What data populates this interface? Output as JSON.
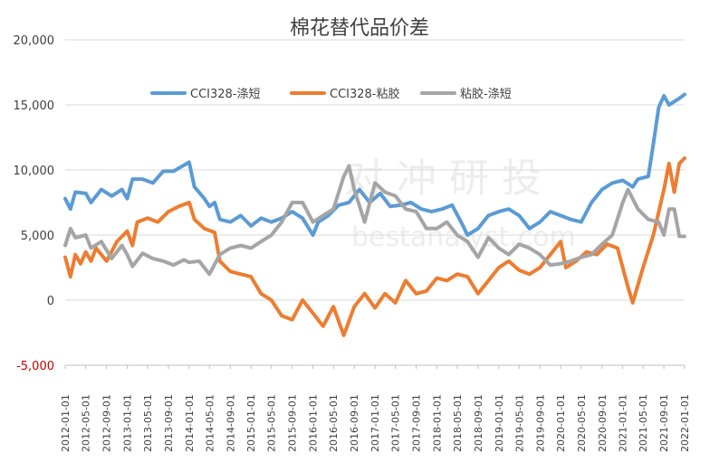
{
  "chart_data": {
    "type": "line",
    "title": "棉花替代品价差",
    "xlabel": "",
    "ylabel": "",
    "ylim": [
      -5000,
      20000
    ],
    "yticks": [
      -5000,
      0,
      5000,
      10000,
      15000,
      20000
    ],
    "ytick_labels": [
      "-5,000",
      "0",
      "5,000",
      "10,000",
      "15,000",
      "20,000"
    ],
    "grid": true,
    "legend_position": "top-center",
    "x_tick_labels": [
      "2012-01-01",
      "2012-05-01",
      "2012-09-01",
      "2013-01-01",
      "2013-05-01",
      "2013-09-01",
      "2014-01-01",
      "2014-05-01",
      "2014-09-01",
      "2015-01-01",
      "2015-05-01",
      "2015-09-01",
      "2016-01-01",
      "2016-05-01",
      "2016-09-01",
      "2017-01-01",
      "2017-05-01",
      "2017-09-01",
      "2018-01-01",
      "2018-05-01",
      "2018-09-01",
      "2019-01-01",
      "2019-05-01",
      "2019-09-01",
      "2020-01-01",
      "2020-05-01",
      "2020-09-01",
      "2021-01-01",
      "2021-05-01",
      "2021-09-01",
      "2022-01-01"
    ],
    "x_start": "2012-01-01",
    "x_end": "2022-01-01",
    "series": [
      {
        "name": "CCI328-涤短",
        "color": "#5b9bd5",
        "points": [
          [
            "2012-01-01",
            7800
          ],
          [
            "2012-02-01",
            7000
          ],
          [
            "2012-03-01",
            8300
          ],
          [
            "2012-05-01",
            8200
          ],
          [
            "2012-06-01",
            7500
          ],
          [
            "2012-08-01",
            8500
          ],
          [
            "2012-10-01",
            8000
          ],
          [
            "2012-12-01",
            8500
          ],
          [
            "2013-01-01",
            7800
          ],
          [
            "2013-02-01",
            9300
          ],
          [
            "2013-04-01",
            9300
          ],
          [
            "2013-06-01",
            9000
          ],
          [
            "2013-08-01",
            9900
          ],
          [
            "2013-10-01",
            9900
          ],
          [
            "2014-01-01",
            10600
          ],
          [
            "2014-02-01",
            8700
          ],
          [
            "2014-04-01",
            7800
          ],
          [
            "2014-05-01",
            7200
          ],
          [
            "2014-06-01",
            7500
          ],
          [
            "2014-07-01",
            6200
          ],
          [
            "2014-09-01",
            6000
          ],
          [
            "2014-11-01",
            6500
          ],
          [
            "2015-01-01",
            5700
          ],
          [
            "2015-03-01",
            6300
          ],
          [
            "2015-05-01",
            6000
          ],
          [
            "2015-07-01",
            6300
          ],
          [
            "2015-09-01",
            6800
          ],
          [
            "2015-11-01",
            6300
          ],
          [
            "2016-01-01",
            5000
          ],
          [
            "2016-02-01",
            6000
          ],
          [
            "2016-04-01",
            6500
          ],
          [
            "2016-06-01",
            7300
          ],
          [
            "2016-08-01",
            7500
          ],
          [
            "2016-10-01",
            8500
          ],
          [
            "2016-12-01",
            7500
          ],
          [
            "2017-02-01",
            8200
          ],
          [
            "2017-04-01",
            7200
          ],
          [
            "2017-06-01",
            7300
          ],
          [
            "2017-08-01",
            7500
          ],
          [
            "2017-10-01",
            7000
          ],
          [
            "2017-12-01",
            6800
          ],
          [
            "2018-02-01",
            7000
          ],
          [
            "2018-04-01",
            7300
          ],
          [
            "2018-06-01",
            5800
          ],
          [
            "2018-07-01",
            5000
          ],
          [
            "2018-09-01",
            5500
          ],
          [
            "2018-11-01",
            6500
          ],
          [
            "2019-01-01",
            6800
          ],
          [
            "2019-03-01",
            7000
          ],
          [
            "2019-05-01",
            6500
          ],
          [
            "2019-07-01",
            5500
          ],
          [
            "2019-09-01",
            6000
          ],
          [
            "2019-11-01",
            6800
          ],
          [
            "2020-01-01",
            6500
          ],
          [
            "2020-03-01",
            6200
          ],
          [
            "2020-05-01",
            6000
          ],
          [
            "2020-07-01",
            7500
          ],
          [
            "2020-09-01",
            8500
          ],
          [
            "2020-11-01",
            9000
          ],
          [
            "2021-01-01",
            9200
          ],
          [
            "2021-03-01",
            8700
          ],
          [
            "2021-04-01",
            9300
          ],
          [
            "2021-06-01",
            9500
          ],
          [
            "2021-07-01",
            12000
          ],
          [
            "2021-08-01",
            14800
          ],
          [
            "2021-09-01",
            15700
          ],
          [
            "2021-10-01",
            15000
          ],
          [
            "2021-12-01",
            15500
          ],
          [
            "2022-01-01",
            15800
          ]
        ]
      },
      {
        "name": "CCI328-粘胶",
        "color": "#ed7d31",
        "points": [
          [
            "2012-01-01",
            3300
          ],
          [
            "2012-02-01",
            1800
          ],
          [
            "2012-03-01",
            3500
          ],
          [
            "2012-04-01",
            2800
          ],
          [
            "2012-05-01",
            3700
          ],
          [
            "2012-06-01",
            3000
          ],
          [
            "2012-07-01",
            4000
          ],
          [
            "2012-09-01",
            3000
          ],
          [
            "2012-11-01",
            4500
          ],
          [
            "2013-01-01",
            5300
          ],
          [
            "2013-02-01",
            4200
          ],
          [
            "2013-03-01",
            6000
          ],
          [
            "2013-05-01",
            6300
          ],
          [
            "2013-07-01",
            6000
          ],
          [
            "2013-09-01",
            6800
          ],
          [
            "2013-11-01",
            7200
          ],
          [
            "2014-01-01",
            7500
          ],
          [
            "2014-02-01",
            6200
          ],
          [
            "2014-04-01",
            5500
          ],
          [
            "2014-06-01",
            5200
          ],
          [
            "2014-07-01",
            3000
          ],
          [
            "2014-09-01",
            2200
          ],
          [
            "2014-11-01",
            2000
          ],
          [
            "2015-01-01",
            1800
          ],
          [
            "2015-03-01",
            500
          ],
          [
            "2015-05-01",
            0
          ],
          [
            "2015-07-01",
            -1200
          ],
          [
            "2015-09-01",
            -1500
          ],
          [
            "2015-11-01",
            0
          ],
          [
            "2016-01-01",
            -1000
          ],
          [
            "2016-03-01",
            -2000
          ],
          [
            "2016-05-01",
            -500
          ],
          [
            "2016-07-01",
            -2700
          ],
          [
            "2016-09-01",
            -500
          ],
          [
            "2016-11-01",
            500
          ],
          [
            "2017-01-01",
            -600
          ],
          [
            "2017-03-01",
            500
          ],
          [
            "2017-05-01",
            -200
          ],
          [
            "2017-07-01",
            1500
          ],
          [
            "2017-09-01",
            500
          ],
          [
            "2017-11-01",
            700
          ],
          [
            "2018-01-01",
            1700
          ],
          [
            "2018-03-01",
            1500
          ],
          [
            "2018-05-01",
            2000
          ],
          [
            "2018-07-01",
            1800
          ],
          [
            "2018-09-01",
            500
          ],
          [
            "2018-11-01",
            1500
          ],
          [
            "2019-01-01",
            2500
          ],
          [
            "2019-03-01",
            3000
          ],
          [
            "2019-05-01",
            2300
          ],
          [
            "2019-07-01",
            2000
          ],
          [
            "2019-09-01",
            2500
          ],
          [
            "2019-11-01",
            3500
          ],
          [
            "2020-01-01",
            4500
          ],
          [
            "2020-02-01",
            2500
          ],
          [
            "2020-04-01",
            3000
          ],
          [
            "2020-06-01",
            3700
          ],
          [
            "2020-08-01",
            3500
          ],
          [
            "2020-10-01",
            4300
          ],
          [
            "2020-12-01",
            4000
          ],
          [
            "2021-02-01",
            1000
          ],
          [
            "2021-03-01",
            -200
          ],
          [
            "2021-05-01",
            2500
          ],
          [
            "2021-07-01",
            5000
          ],
          [
            "2021-09-01",
            8500
          ],
          [
            "2021-10-01",
            10500
          ],
          [
            "2021-11-01",
            8300
          ],
          [
            "2021-12-01",
            10500
          ],
          [
            "2022-01-01",
            10900
          ]
        ]
      },
      {
        "name": "粘胶-涤短",
        "color": "#a5a5a5",
        "points": [
          [
            "2012-01-01",
            4200
          ],
          [
            "2012-02-01",
            5500
          ],
          [
            "2012-03-01",
            4800
          ],
          [
            "2012-05-01",
            5000
          ],
          [
            "2012-06-01",
            4000
          ],
          [
            "2012-08-01",
            4500
          ],
          [
            "2012-10-01",
            3200
          ],
          [
            "2012-12-01",
            4200
          ],
          [
            "2013-01-01",
            3500
          ],
          [
            "2013-02-01",
            2600
          ],
          [
            "2013-04-01",
            3600
          ],
          [
            "2013-06-01",
            3200
          ],
          [
            "2013-08-01",
            3000
          ],
          [
            "2013-10-01",
            2700
          ],
          [
            "2013-12-01",
            3100
          ],
          [
            "2014-01-01",
            2900
          ],
          [
            "2014-03-01",
            3000
          ],
          [
            "2014-05-01",
            2000
          ],
          [
            "2014-07-01",
            3500
          ],
          [
            "2014-09-01",
            4000
          ],
          [
            "2014-11-01",
            4200
          ],
          [
            "2015-01-01",
            4000
          ],
          [
            "2015-03-01",
            4500
          ],
          [
            "2015-05-01",
            5000
          ],
          [
            "2015-07-01",
            6000
          ],
          [
            "2015-09-01",
            7500
          ],
          [
            "2015-11-01",
            7500
          ],
          [
            "2016-01-01",
            6000
          ],
          [
            "2016-03-01",
            6500
          ],
          [
            "2016-05-01",
            7000
          ],
          [
            "2016-07-01",
            9500
          ],
          [
            "2016-08-01",
            10300
          ],
          [
            "2016-09-01",
            8500
          ],
          [
            "2016-11-01",
            6000
          ],
          [
            "2017-01-01",
            9000
          ],
          [
            "2017-03-01",
            8300
          ],
          [
            "2017-05-01",
            8000
          ],
          [
            "2017-07-01",
            7000
          ],
          [
            "2017-09-01",
            6800
          ],
          [
            "2017-11-01",
            5500
          ],
          [
            "2018-01-01",
            5500
          ],
          [
            "2018-03-01",
            6000
          ],
          [
            "2018-05-01",
            5000
          ],
          [
            "2018-07-01",
            4500
          ],
          [
            "2018-09-01",
            3300
          ],
          [
            "2018-11-01",
            4800
          ],
          [
            "2019-01-01",
            4000
          ],
          [
            "2019-03-01",
            3500
          ],
          [
            "2019-05-01",
            4300
          ],
          [
            "2019-07-01",
            4000
          ],
          [
            "2019-09-01",
            3500
          ],
          [
            "2019-11-01",
            2700
          ],
          [
            "2020-01-01",
            2800
          ],
          [
            "2020-03-01",
            3000
          ],
          [
            "2020-05-01",
            3300
          ],
          [
            "2020-07-01",
            3500
          ],
          [
            "2020-09-01",
            4300
          ],
          [
            "2020-11-01",
            5000
          ],
          [
            "2021-01-01",
            7500
          ],
          [
            "2021-02-01",
            8500
          ],
          [
            "2021-04-01",
            7000
          ],
          [
            "2021-06-01",
            6200
          ],
          [
            "2021-08-01",
            6000
          ],
          [
            "2021-09-01",
            5000
          ],
          [
            "2021-10-01",
            7000
          ],
          [
            "2021-11-01",
            7000
          ],
          [
            "2021-12-01",
            4900
          ],
          [
            "2022-01-01",
            4900
          ]
        ]
      }
    ]
  },
  "watermark": {
    "line1": "对 冲 研 投",
    "line2": "bestanalyst.com"
  }
}
